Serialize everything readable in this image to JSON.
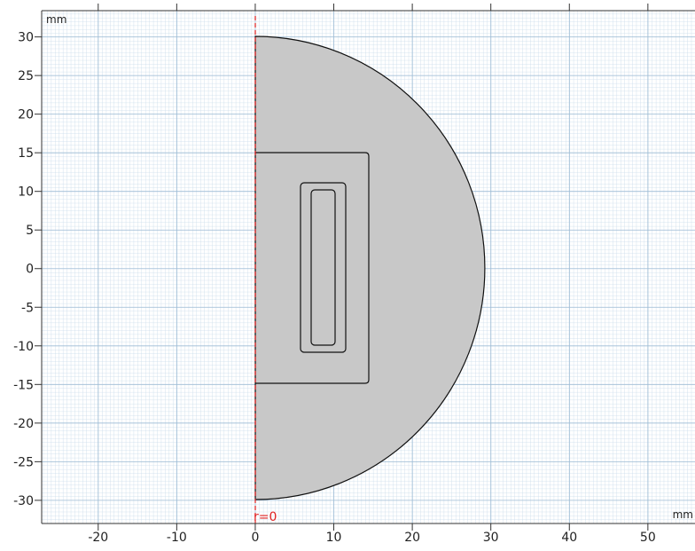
{
  "axes": {
    "x_unit": "mm",
    "y_unit": "mm",
    "xlim": [
      -27.2,
      56
    ],
    "ylim": [
      -33,
      33.4
    ],
    "xticks": [
      -20,
      -10,
      0,
      10,
      20,
      30,
      40,
      50
    ],
    "yticks": [
      -30,
      -25,
      -20,
      -15,
      -10,
      -5,
      0,
      5,
      10,
      15,
      20,
      25,
      30
    ]
  },
  "annotation": "r=0"
}
